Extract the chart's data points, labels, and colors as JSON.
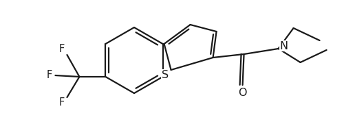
{
  "bg_color": "#ffffff",
  "line_color": "#1a1a1a",
  "line_width": 1.6,
  "font_size": 10.5,
  "figsize": [
    5.0,
    1.78
  ],
  "dpi": 100,
  "xlim": [
    0,
    500
  ],
  "ylim": [
    0,
    178
  ]
}
